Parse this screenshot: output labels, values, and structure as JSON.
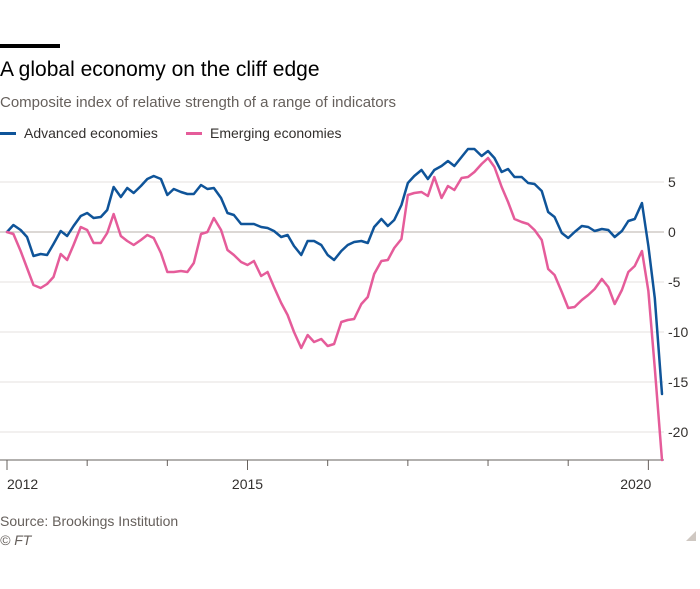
{
  "header": {
    "title": "A global economy on the cliff edge",
    "subtitle": "Composite index of relative strength of a range of indicators"
  },
  "legend": {
    "items": [
      {
        "label": "Advanced economies",
        "color": "#0f5499"
      },
      {
        "label": "Emerging economies",
        "color": "#e55c9a"
      }
    ]
  },
  "footer": {
    "source": "Source: Brookings Institution",
    "copyright": "© FT"
  },
  "chart_data": {
    "type": "line",
    "title": "A global economy on the cliff edge",
    "subtitle": "Composite index of relative strength of a range of indicators",
    "xlabel": "",
    "ylabel": "",
    "x_tick_labels": [
      {
        "value": 2012,
        "label": "2012"
      },
      {
        "value": 2015,
        "label": "2015"
      },
      {
        "value": 2020,
        "label": "2020"
      }
    ],
    "y_ticks": [
      5,
      0,
      -5,
      -10,
      -15,
      -20
    ],
    "y_tick_labels": [
      "5",
      "0",
      "-5",
      "-10",
      "-15",
      "-20"
    ],
    "xlim": [
      2012.0,
      2020.17
    ],
    "ylim": [
      -23,
      8.5
    ],
    "grid": true,
    "y_axis_position": "right",
    "legend_position": "top-left",
    "series": [
      {
        "name": "Advanced economies",
        "color": "#0f5499",
        "x": [
          2012.0,
          2012.08,
          2012.17,
          2012.25,
          2012.33,
          2012.42,
          2012.5,
          2012.58,
          2012.67,
          2012.75,
          2012.83,
          2012.92,
          2013.0,
          2013.08,
          2013.17,
          2013.25,
          2013.33,
          2013.42,
          2013.5,
          2013.58,
          2013.67,
          2013.75,
          2013.83,
          2013.92,
          2014.0,
          2014.08,
          2014.17,
          2014.25,
          2014.33,
          2014.42,
          2014.5,
          2014.58,
          2014.67,
          2014.75,
          2014.83,
          2014.92,
          2015.0,
          2015.08,
          2015.17,
          2015.25,
          2015.33,
          2015.42,
          2015.5,
          2015.58,
          2015.67,
          2015.75,
          2015.83,
          2015.92,
          2016.0,
          2016.08,
          2016.17,
          2016.25,
          2016.33,
          2016.42,
          2016.5,
          2016.58,
          2016.67,
          2016.75,
          2016.83,
          2016.92,
          2017.0,
          2017.08,
          2017.17,
          2017.25,
          2017.33,
          2017.42,
          2017.5,
          2017.58,
          2017.67,
          2017.75,
          2017.83,
          2017.92,
          2018.0,
          2018.08,
          2018.17,
          2018.25,
          2018.33,
          2018.42,
          2018.5,
          2018.58,
          2018.67,
          2018.75,
          2018.83,
          2018.92,
          2019.0,
          2019.08,
          2019.17,
          2019.25,
          2019.33,
          2019.42,
          2019.5,
          2019.58,
          2019.67,
          2019.75,
          2019.83,
          2019.92,
          2020.0,
          2020.08,
          2020.17
        ],
        "values": [
          0.0,
          0.7,
          0.2,
          -0.5,
          -2.4,
          -2.2,
          -2.3,
          -1.2,
          0.1,
          -0.4,
          0.6,
          1.6,
          1.9,
          1.4,
          1.5,
          2.2,
          4.5,
          3.5,
          4.4,
          3.9,
          4.6,
          5.3,
          5.6,
          5.3,
          3.7,
          4.3,
          4.0,
          3.8,
          3.8,
          4.7,
          4.3,
          4.4,
          3.4,
          1.9,
          1.7,
          0.8,
          0.8,
          0.8,
          0.5,
          0.4,
          0.1,
          -0.5,
          -0.3,
          -1.4,
          -2.3,
          -0.9,
          -0.9,
          -1.3,
          -2.3,
          -2.8,
          -1.9,
          -1.3,
          -1.0,
          -0.9,
          -1.1,
          0.5,
          1.3,
          0.6,
          1.2,
          2.7,
          4.9,
          5.6,
          6.2,
          5.3,
          6.2,
          6.6,
          7.1,
          6.6,
          7.5,
          8.3,
          8.3,
          7.6,
          8.1,
          7.4,
          6.0,
          6.3,
          5.5,
          5.5,
          4.9,
          4.8,
          4.1,
          2.0,
          1.5,
          -0.1,
          -0.6,
          0.0,
          0.6,
          0.5,
          0.1,
          0.3,
          0.2,
          -0.5,
          0.1,
          1.1,
          1.3,
          2.9,
          -1.4,
          -6.6,
          -16.2
        ]
      },
      {
        "name": "Emerging economies",
        "color": "#e55c9a",
        "x": [
          2012.0,
          2012.08,
          2012.17,
          2012.25,
          2012.33,
          2012.42,
          2012.5,
          2012.58,
          2012.67,
          2012.75,
          2012.83,
          2012.92,
          2013.0,
          2013.08,
          2013.17,
          2013.25,
          2013.33,
          2013.42,
          2013.5,
          2013.58,
          2013.67,
          2013.75,
          2013.83,
          2013.92,
          2014.0,
          2014.08,
          2014.17,
          2014.25,
          2014.33,
          2014.42,
          2014.5,
          2014.58,
          2014.67,
          2014.75,
          2014.83,
          2014.92,
          2015.0,
          2015.08,
          2015.17,
          2015.25,
          2015.33,
          2015.42,
          2015.5,
          2015.58,
          2015.67,
          2015.75,
          2015.83,
          2015.92,
          2016.0,
          2016.08,
          2016.17,
          2016.25,
          2016.33,
          2016.42,
          2016.5,
          2016.58,
          2016.67,
          2016.75,
          2016.83,
          2016.92,
          2017.0,
          2017.08,
          2017.17,
          2017.25,
          2017.33,
          2017.42,
          2017.5,
          2017.58,
          2017.67,
          2017.75,
          2017.83,
          2017.92,
          2018.0,
          2018.08,
          2018.17,
          2018.25,
          2018.33,
          2018.42,
          2018.5,
          2018.58,
          2018.67,
          2018.75,
          2018.83,
          2018.92,
          2019.0,
          2019.08,
          2019.17,
          2019.25,
          2019.33,
          2019.42,
          2019.5,
          2019.58,
          2019.67,
          2019.75,
          2019.83,
          2019.92,
          2020.0,
          2020.08,
          2020.17
        ],
        "values": [
          0.0,
          -0.2,
          -1.9,
          -3.6,
          -5.3,
          -5.6,
          -5.2,
          -4.5,
          -2.2,
          -2.8,
          -1.3,
          0.5,
          0.2,
          -1.1,
          -1.1,
          -0.1,
          1.8,
          -0.4,
          -0.9,
          -1.3,
          -0.8,
          -0.3,
          -0.6,
          -2.1,
          -4.0,
          -4.0,
          -3.9,
          -4.0,
          -3.1,
          -0.2,
          0.0,
          1.4,
          0.2,
          -1.8,
          -2.3,
          -3.0,
          -3.3,
          -2.9,
          -4.4,
          -4.0,
          -5.5,
          -7.1,
          -8.3,
          -10.0,
          -11.6,
          -10.3,
          -11.0,
          -10.7,
          -11.4,
          -11.2,
          -9.0,
          -8.8,
          -8.7,
          -7.2,
          -6.5,
          -4.2,
          -2.9,
          -2.8,
          -1.6,
          -0.7,
          3.7,
          3.9,
          4.0,
          3.6,
          5.5,
          3.4,
          4.6,
          4.2,
          5.4,
          5.5,
          6.0,
          6.8,
          7.4,
          6.5,
          4.5,
          3.0,
          1.3,
          1.0,
          0.8,
          0.2,
          -0.8,
          -3.7,
          -4.3,
          -6.0,
          -7.6,
          -7.5,
          -6.8,
          -6.3,
          -5.7,
          -4.7,
          -5.5,
          -7.2,
          -5.8,
          -4.0,
          -3.4,
          -1.9,
          -5.9,
          -13.6,
          -22.8
        ]
      }
    ]
  }
}
